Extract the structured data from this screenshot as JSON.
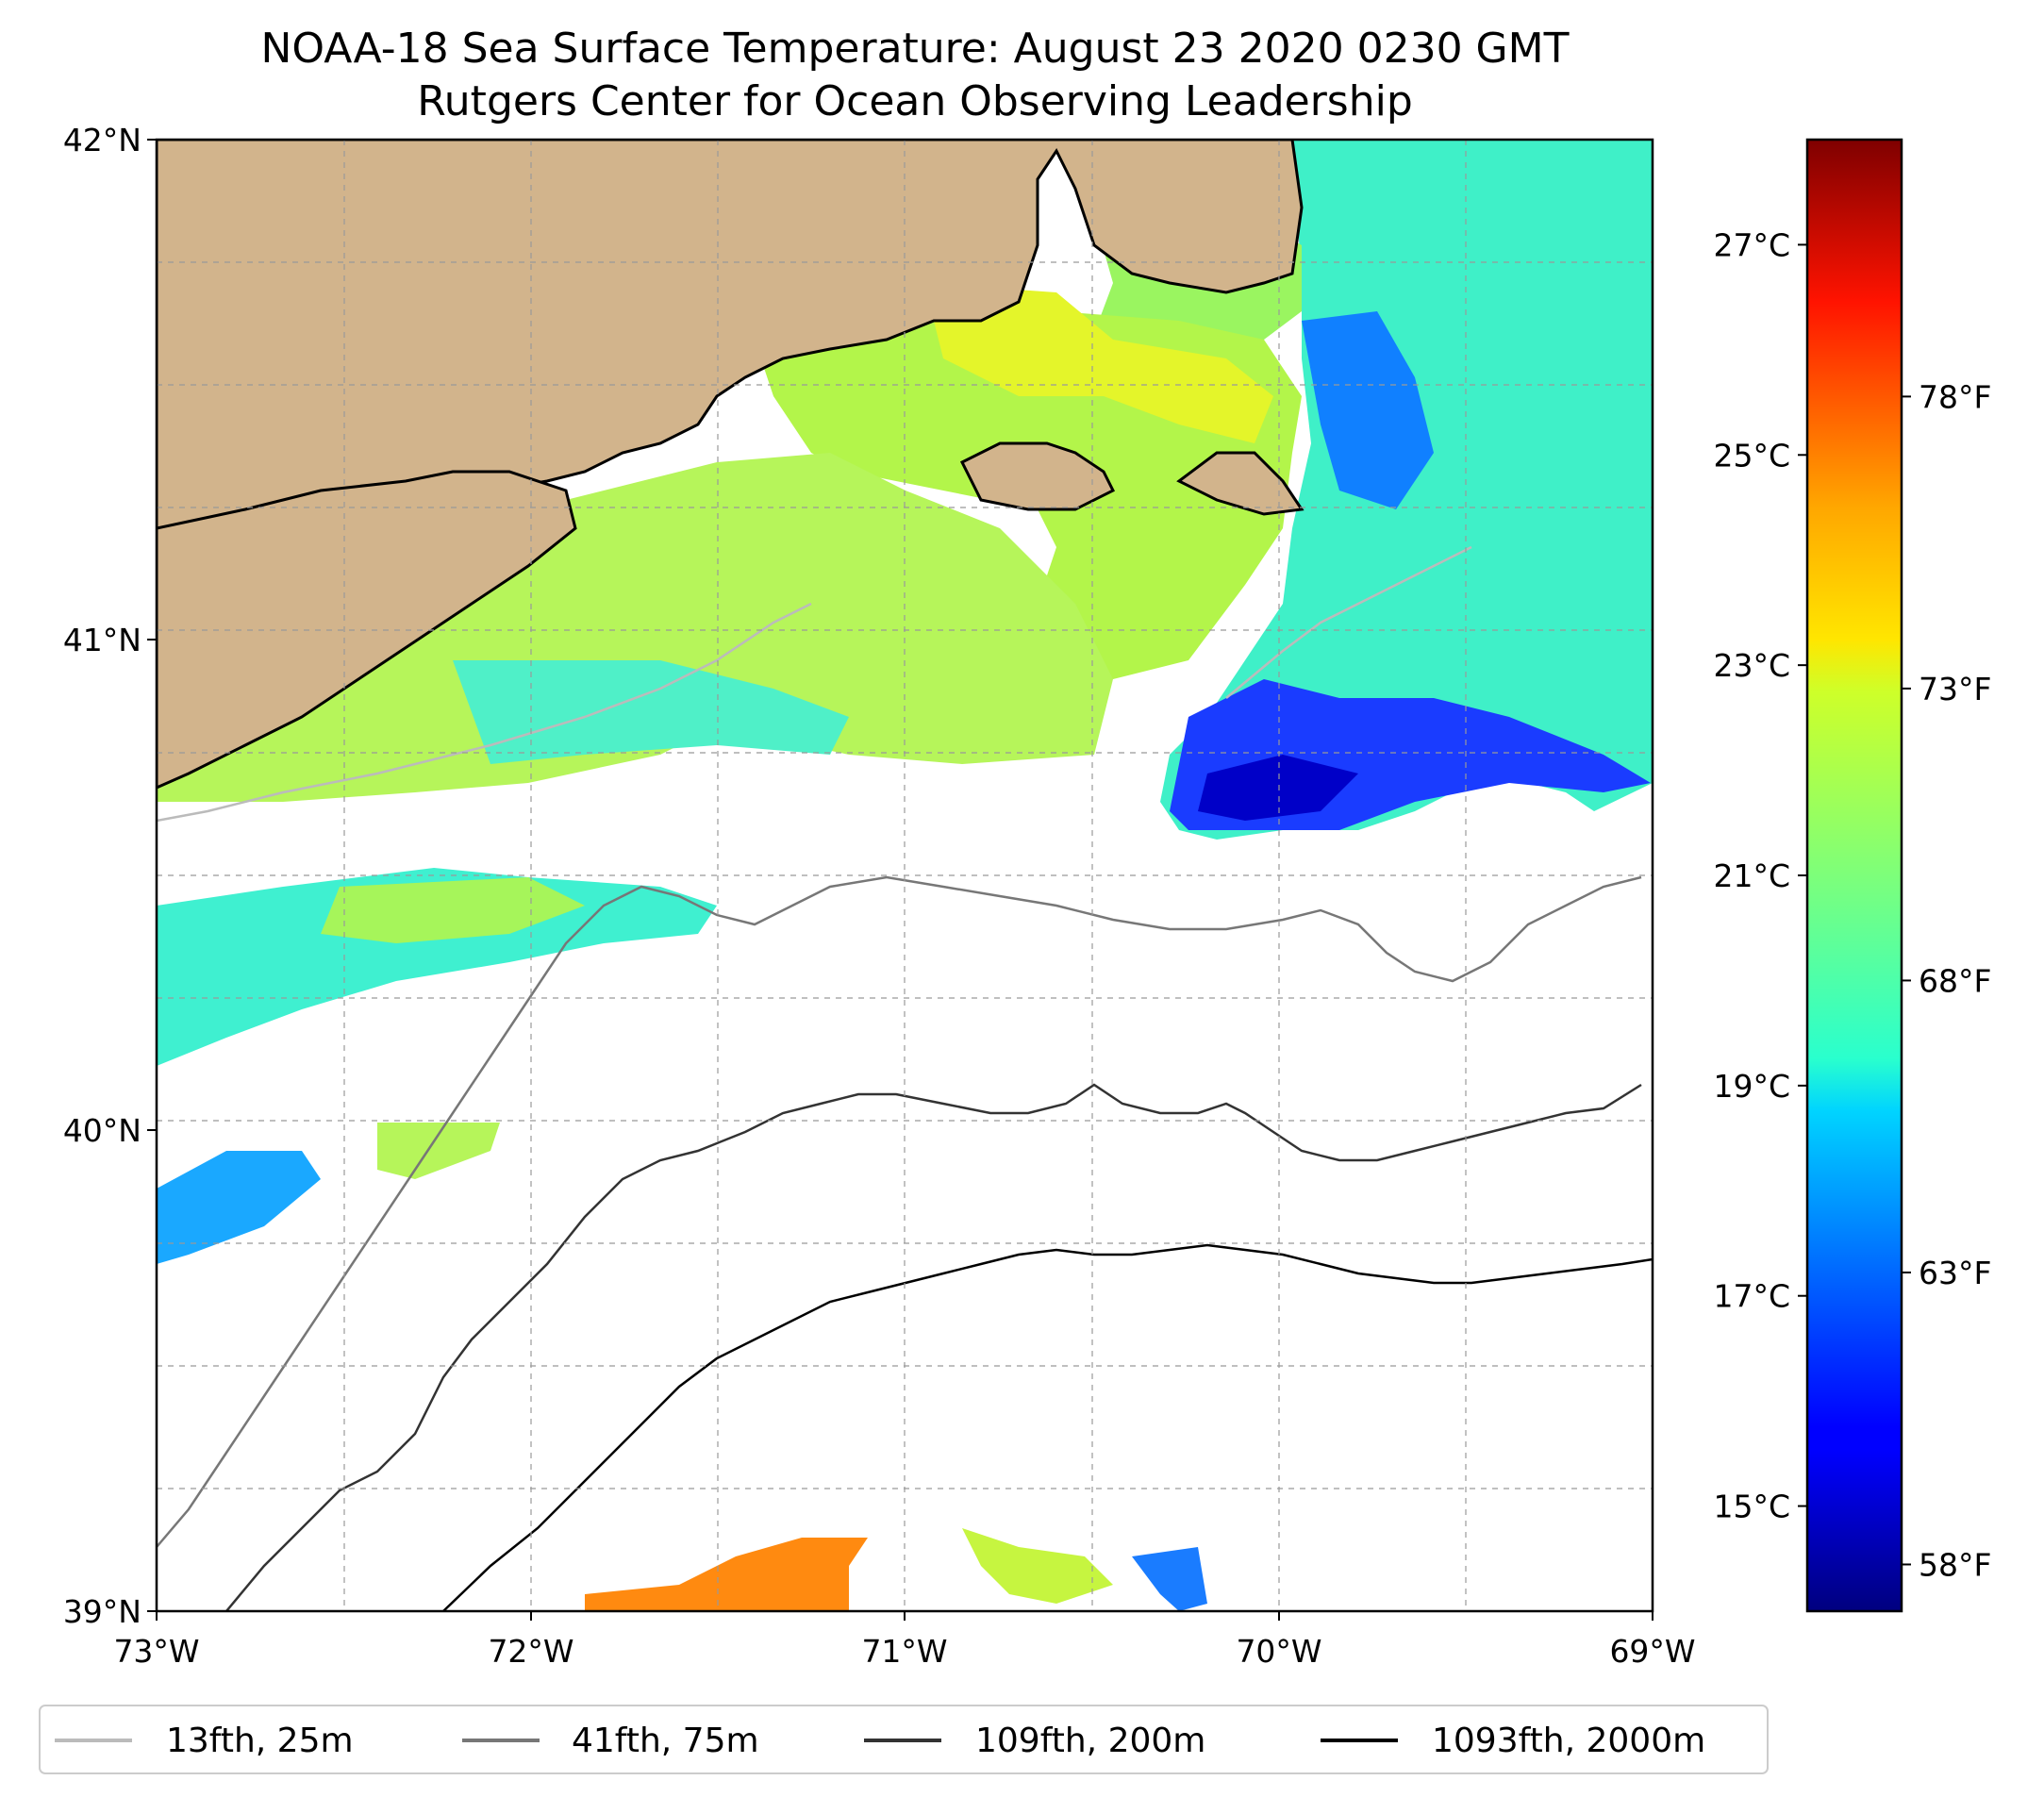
{
  "title_line1": "NOAA-18 Sea Surface Temperature: August 23 2020 0230 GMT",
  "title_line2": "Rutgers Center for Ocean Observing Leadership",
  "map": {
    "lon_range": [
      -73,
      -69
    ],
    "lat_range": [
      39,
      42
    ],
    "lon_ticks": [
      "73°W",
      "72°W",
      "71°W",
      "70°W",
      "69°W"
    ],
    "lat_ticks": [
      "39°N",
      "40°N",
      "41°N",
      "42°N"
    ],
    "gridlines": true,
    "land_color": "#d2b48c",
    "no_data_color": "#ffffff"
  },
  "colorbar": {
    "colormap": "jet",
    "celsius_range": [
      14.0,
      28.0
    ],
    "celsius_ticks": [
      {
        "value": 15,
        "label": "15°C"
      },
      {
        "value": 17,
        "label": "17°C"
      },
      {
        "value": 19,
        "label": "19°C"
      },
      {
        "value": 21,
        "label": "21°C"
      },
      {
        "value": 23,
        "label": "23°C"
      },
      {
        "value": 25,
        "label": "25°C"
      },
      {
        "value": 27,
        "label": "27°C"
      }
    ],
    "fahrenheit_ticks": [
      {
        "value": 58,
        "label": "58°F"
      },
      {
        "value": 63,
        "label": "63°F"
      },
      {
        "value": 68,
        "label": "68°F"
      },
      {
        "value": 73,
        "label": "73°F"
      },
      {
        "value": 78,
        "label": "78°F"
      }
    ]
  },
  "legend": [
    {
      "label": "13fth, 25m",
      "color": "#bbbbbb"
    },
    {
      "label": "41fth, 75m",
      "color": "#777777"
    },
    {
      "label": "109fth, 200m",
      "color": "#333333"
    },
    {
      "label": "1093fth, 2000m",
      "color": "#000000"
    }
  ]
}
